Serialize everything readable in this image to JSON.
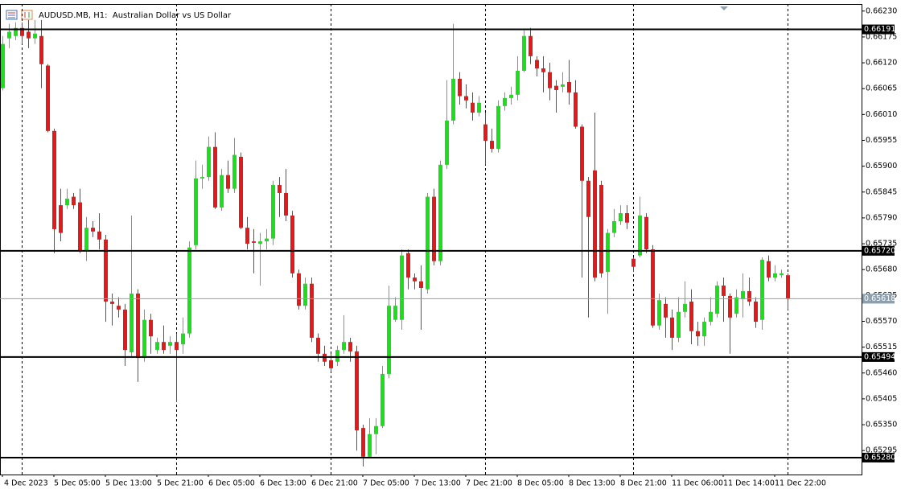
{
  "chart_data": {
    "type": "candlestick",
    "title": "AUDUSD.MB, H1:  Australian Dollar vs US Dollar",
    "categories": [
      "4 Dec 2023",
      null,
      null,
      null,
      null,
      null,
      null,
      null,
      "5 Dec 05:00",
      null,
      null,
      null,
      null,
      null,
      null,
      null,
      "5 Dec 13:00",
      null,
      null,
      null,
      null,
      null,
      null,
      null,
      "5 Dec 21:00",
      null,
      null,
      null,
      null,
      null,
      null,
      null,
      "6 Dec 05:00",
      null,
      null,
      null,
      null,
      null,
      null,
      null,
      "6 Dec 13:00",
      null,
      null,
      null,
      null,
      null,
      null,
      null,
      "6 Dec 21:00",
      null,
      null,
      null,
      null,
      null,
      null,
      null,
      "7 Dec 05:00",
      null,
      null,
      null,
      null,
      null,
      null,
      null,
      "7 Dec 13:00",
      null,
      null,
      null,
      null,
      null,
      null,
      null,
      "7 Dec 21:00",
      null,
      null,
      null,
      null,
      null,
      null,
      null,
      "8 Dec 05:00",
      null,
      null,
      null,
      null,
      null,
      null,
      null,
      "8 Dec 13:00",
      null,
      null,
      null,
      null,
      null,
      null,
      null,
      "8 Dec 21:00",
      null,
      null,
      null,
      null,
      null,
      null,
      null,
      "11 Dec 06:00",
      null,
      null,
      null,
      null,
      null,
      null,
      null,
      "11 Dec 14:00",
      null,
      null,
      null,
      null,
      null,
      null,
      null,
      "11 Dec 22:00",
      null,
      null
    ],
    "open": [
      0.66066,
      0.66172,
      0.66177,
      0.66194,
      0.66186,
      0.66172,
      0.66177,
      0.66114,
      0.65975,
      0.65817,
      0.65817,
      0.65835,
      0.65823,
      0.6572,
      0.65769,
      0.65761,
      0.65744,
      0.65612,
      0.65603,
      0.65595,
      0.65504,
      0.65629,
      0.65492,
      0.65573,
      0.65509,
      0.65526,
      0.65518,
      0.65526,
      0.65521,
      0.65544,
      0.65732,
      0.65874,
      0.65877,
      0.65941,
      0.65812,
      0.65881,
      0.65852,
      0.6592,
      0.65769,
      0.6574,
      0.65735,
      0.6574,
      0.65746,
      0.6586,
      0.65843,
      0.65795,
      0.65672,
      0.65603,
      0.6565,
      0.65535,
      0.65501,
      0.65487,
      0.65484,
      0.65509,
      0.65526,
      0.65506,
      0.65343,
      0.65282,
      0.6533,
      0.65347,
      0.65458,
      0.65573,
      0.65573,
      0.65715,
      0.65663,
      0.65655,
      0.65638,
      0.65835,
      0.65698,
      0.65903,
      0.65997,
      0.66086,
      0.66049,
      0.66035,
      0.66014,
      0.65989,
      0.65954,
      0.65937,
      0.66028,
      0.66045,
      0.66052,
      0.66103,
      0.66177,
      0.66126,
      0.66108,
      0.661,
      0.66071,
      0.66069,
      0.66079,
      0.66057,
      0.65984,
      0.65869,
      0.65891,
      0.6586,
      0.65675,
      0.65758,
      0.65783,
      0.658,
      0.65703,
      0.6571,
      0.65792,
      0.65723,
      0.65561,
      0.65607,
      0.65578,
      0.65535,
      0.6559,
      0.65612,
      0.65549,
      0.65538,
      0.65569,
      0.65586,
      0.65646,
      0.65624,
      0.65586,
      0.65617,
      0.65634,
      0.65612,
      0.65573,
      0.65698,
      0.65663,
      0.65668,
      0.65668
    ],
    "high": [
      0.66177,
      0.66203,
      0.66206,
      0.66206,
      0.66211,
      0.66211,
      0.66211,
      0.66117,
      0.6598,
      0.65852,
      0.65852,
      0.65843,
      0.65852,
      0.65792,
      0.65783,
      0.658,
      0.65754,
      0.65629,
      0.65621,
      0.65607,
      0.65795,
      0.65638,
      0.65595,
      0.65586,
      0.65535,
      0.65561,
      0.65538,
      0.65544,
      0.65578,
      0.6574,
      0.65912,
      0.65903,
      0.65963,
      0.65972,
      0.65894,
      0.65912,
      0.6596,
      0.65929,
      0.65792,
      0.65766,
      0.65758,
      0.65766,
      0.65869,
      0.65877,
      0.65894,
      0.65805,
      0.6568,
      0.65663,
      0.65663,
      0.65544,
      0.65518,
      0.65501,
      0.65518,
      0.65583,
      0.65535,
      0.65518,
      0.6535,
      0.65364,
      0.65364,
      0.65475,
      0.65646,
      0.65621,
      0.65723,
      0.65723,
      0.65672,
      0.65689,
      0.65843,
      0.65852,
      0.65912,
      0.66083,
      0.66203,
      0.661,
      0.66074,
      0.66057,
      0.66049,
      0.66014,
      0.6598,
      0.6604,
      0.66057,
      0.66069,
      0.66134,
      0.66189,
      0.66194,
      0.66134,
      0.66134,
      0.6612,
      0.66083,
      0.661,
      0.66126,
      0.66083,
      0.65989,
      0.65877,
      0.66014,
      0.65869,
      0.65766,
      0.65809,
      0.65817,
      0.65817,
      0.65706,
      0.65835,
      0.658,
      0.65732,
      0.65629,
      0.65621,
      0.65595,
      0.65621,
      0.65655,
      0.65638,
      0.65569,
      0.65578,
      0.65621,
      0.65655,
      0.65663,
      0.65629,
      0.65638,
      0.65672,
      0.65663,
      0.65621,
      0.65706,
      0.6571,
      0.65689,
      0.6568,
      0.65672
    ],
    "low": [
      0.66061,
      0.66151,
      0.66168,
      0.6616,
      0.66151,
      0.6616,
      0.66066,
      0.65972,
      0.65715,
      0.6574,
      0.65809,
      0.65809,
      0.65715,
      0.65698,
      0.65749,
      0.65723,
      0.65569,
      0.65561,
      0.65578,
      0.65475,
      0.65492,
      0.65441,
      0.65484,
      0.65501,
      0.65501,
      0.65501,
      0.65501,
      0.65398,
      0.65501,
      0.65535,
      0.65723,
      0.65852,
      0.65869,
      0.65809,
      0.65805,
      0.65843,
      0.65843,
      0.65766,
      0.65723,
      0.65672,
      0.65646,
      0.65723,
      0.65732,
      0.65792,
      0.65783,
      0.65663,
      0.65595,
      0.65595,
      0.65526,
      0.65484,
      0.65475,
      0.65463,
      0.65475,
      0.65501,
      0.65484,
      0.65295,
      0.65261,
      0.65278,
      0.65287,
      0.65343,
      0.65449,
      0.65569,
      0.65552,
      0.65638,
      0.65638,
      0.65552,
      0.65629,
      0.65689,
      0.65689,
      0.65894,
      0.65989,
      0.66031,
      0.66023,
      0.65997,
      0.66006,
      0.65903,
      0.65929,
      0.65929,
      0.66018,
      0.66031,
      0.6604,
      0.661,
      0.66117,
      0.66091,
      0.66057,
      0.6604,
      0.66014,
      0.66057,
      0.66031,
      0.6598,
      0.65663,
      0.65578,
      0.65655,
      0.65663,
      0.65586,
      0.65749,
      0.65775,
      0.65766,
      0.65675,
      0.65706,
      0.65715,
      0.65556,
      0.65552,
      0.65535,
      0.65509,
      0.65526,
      0.65578,
      0.65521,
      0.65518,
      0.65518,
      0.65561,
      0.65578,
      0.65569,
      0.65501,
      0.65578,
      0.65578,
      0.65603,
      0.65556,
      0.65552,
      0.65655,
      0.65655,
      0.65663,
      0.65595
    ],
    "close": [
      0.6616,
      0.66186,
      0.66194,
      0.66177,
      0.66172,
      0.66182,
      0.66117,
      0.65975,
      0.65766,
      0.65758,
      0.65831,
      0.65817,
      0.6572,
      0.65769,
      0.65761,
      0.65744,
      0.65612,
      0.65607,
      0.65595,
      0.65509,
      0.65629,
      0.65492,
      0.65573,
      0.65538,
      0.65526,
      0.65509,
      0.65526,
      0.65509,
      0.65544,
      0.65727,
      0.65874,
      0.65877,
      0.65941,
      0.65812,
      0.65881,
      0.65852,
      0.65924,
      0.65769,
      0.65735,
      0.65737,
      0.6574,
      0.65746,
      0.6586,
      0.65843,
      0.65795,
      0.65672,
      0.65603,
      0.6565,
      0.65535,
      0.65501,
      0.65484,
      0.6547,
      0.65509,
      0.65526,
      0.65506,
      0.65338,
      0.65282,
      0.6533,
      0.65347,
      0.65458,
      0.65603,
      0.65603,
      0.6571,
      0.65663,
      0.65655,
      0.65641,
      0.65835,
      0.65698,
      0.65903,
      0.65997,
      0.66086,
      0.66049,
      0.6604,
      0.66014,
      0.66035,
      0.65954,
      0.65937,
      0.66028,
      0.66045,
      0.66052,
      0.66103,
      0.66177,
      0.66134,
      0.66108,
      0.661,
      0.66066,
      0.66062,
      0.66074,
      0.66057,
      0.65984,
      0.65869,
      0.65792,
      0.65663,
      0.65672,
      0.65758,
      0.65783,
      0.658,
      0.6578,
      0.65686,
      0.65795,
      0.65723,
      0.65561,
      0.65615,
      0.65578,
      0.65535,
      0.6559,
      0.65607,
      0.65549,
      0.65538,
      0.65569,
      0.6559,
      0.65646,
      0.65624,
      0.65578,
      0.65621,
      0.65634,
      0.65612,
      0.65569,
      0.65701,
      0.65663,
      0.65672,
      0.65672,
      0.65618
    ],
    "up_color": "#1edc1e",
    "down_color": "#e01b1b",
    "ylim": [
      0.65244,
      0.66245
    ],
    "yticks": [
      {
        "value": 0.6623,
        "label": "0.66230"
      },
      0.66175,
      {
        "value": 0.6612,
        "label": "0.66120"
      },
      0.66065,
      {
        "value": 0.6601,
        "label": "0.66010"
      },
      0.65955,
      {
        "value": 0.659,
        "label": "0.65900"
      },
      0.65845,
      {
        "value": 0.6579,
        "label": "0.65790"
      },
      0.65735,
      {
        "value": 0.6568,
        "label": "0.65680"
      },
      0.65625,
      {
        "value": 0.6557,
        "label": "0.65570"
      },
      0.65515,
      {
        "value": 0.6546,
        "label": "0.65460"
      },
      0.65405,
      {
        "value": 0.6535,
        "label": "0.65350"
      },
      0.65295
    ],
    "levels": [
      0.66191,
      {
        "value": 0.6572,
        "label": "0.65720"
      },
      0.65494,
      {
        "value": 0.6528,
        "label": "0.65280"
      }
    ],
    "last_price": 0.65618
  }
}
